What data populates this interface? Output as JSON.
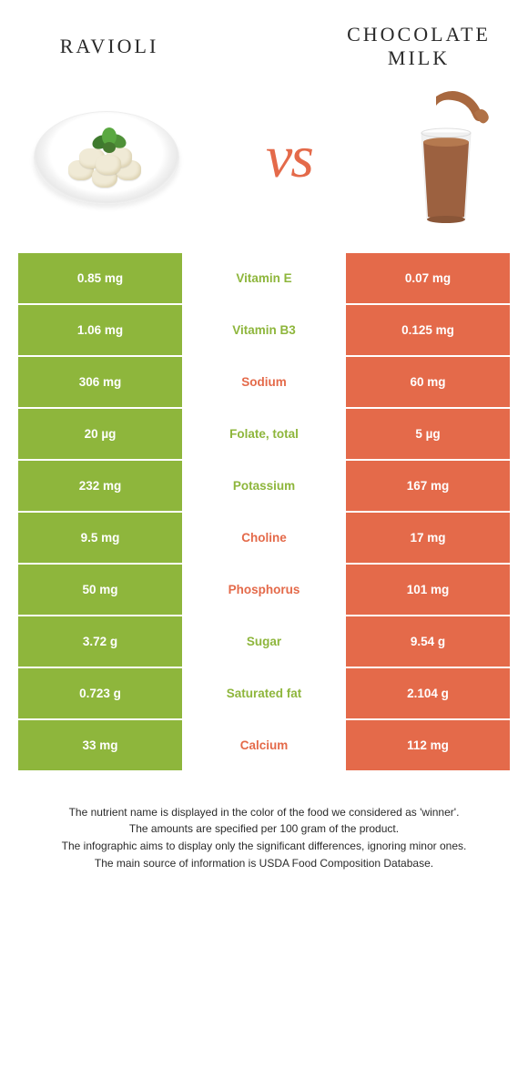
{
  "header": {
    "left_title": "Ravioli",
    "right_title_line1": "Chocolate",
    "right_title_line2": "milk",
    "vs": "vs"
  },
  "colors": {
    "left": "#8eb63c",
    "right": "#e46a4a"
  },
  "rows": [
    {
      "left": "0.85 mg",
      "name": "Vitamin E",
      "winner": "left",
      "right": "0.07 mg"
    },
    {
      "left": "1.06 mg",
      "name": "Vitamin B3",
      "winner": "left",
      "right": "0.125 mg"
    },
    {
      "left": "306 mg",
      "name": "Sodium",
      "winner": "right",
      "right": "60 mg"
    },
    {
      "left": "20 µg",
      "name": "Folate, total",
      "winner": "left",
      "right": "5 µg"
    },
    {
      "left": "232 mg",
      "name": "Potassium",
      "winner": "left",
      "right": "167 mg"
    },
    {
      "left": "9.5 mg",
      "name": "Choline",
      "winner": "right",
      "right": "17 mg"
    },
    {
      "left": "50 mg",
      "name": "Phosphorus",
      "winner": "right",
      "right": "101 mg"
    },
    {
      "left": "3.72 g",
      "name": "Sugar",
      "winner": "left",
      "right": "9.54 g"
    },
    {
      "left": "0.723 g",
      "name": "Saturated fat",
      "winner": "left",
      "right": "2.104 g"
    },
    {
      "left": "33 mg",
      "name": "Calcium",
      "winner": "right",
      "right": "112 mg"
    }
  ],
  "footer": {
    "l1": "The nutrient name is displayed in the color of the food we considered as 'winner'.",
    "l2": "The amounts are specified per 100 gram of the product.",
    "l3": "The infographic aims to display only the significant differences, ignoring minor ones.",
    "l4": "The main source of information is USDA Food Composition Database."
  }
}
